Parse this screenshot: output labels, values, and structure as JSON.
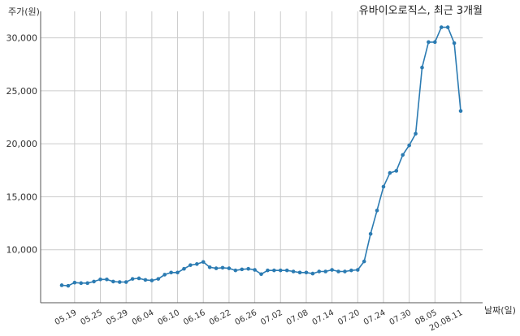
{
  "chart_data": {
    "type": "line",
    "title": "유바이오로직스, 최근 3개월",
    "ylabel": "주가(원)",
    "xlabel": "날짜(일)",
    "ylim": [
      5000,
      32500
    ],
    "yticks": [
      10000,
      15000,
      20000,
      25000,
      30000
    ],
    "ytick_labels": [
      "10,000",
      "15,000",
      "20,000",
      "25,000",
      "30,000"
    ],
    "grid": true,
    "x_tick_labels": [
      "05.19",
      "05.25",
      "05.29",
      "06.04",
      "06.10",
      "06.16",
      "06.22",
      "06.26",
      "07.02",
      "07.08",
      "07.14",
      "07.20",
      "07.24",
      "07.30",
      "08.05",
      "20.08.11"
    ],
    "x_tick_indices": [
      2,
      6,
      10,
      14,
      18,
      22,
      26,
      30,
      34,
      38,
      42,
      46,
      50,
      54,
      58,
      62
    ],
    "series": [
      {
        "values": [
          6650,
          6600,
          6900,
          6850,
          6850,
          7000,
          7200,
          7200,
          7000,
          6950,
          6950,
          7250,
          7300,
          7150,
          7100,
          7250,
          7650,
          7850,
          7850,
          8200,
          8550,
          8650,
          8850,
          8350,
          8250,
          8300,
          8250,
          8050,
          8150,
          8200,
          8100,
          7700,
          8050,
          8050,
          8050,
          8050,
          7950,
          7850,
          7850,
          7750,
          7950,
          7950,
          8100,
          7950,
          7950,
          8050,
          8100,
          8900,
          11500,
          13700,
          15950,
          17250,
          17450,
          18950,
          19850,
          20950,
          27200,
          29600,
          29600,
          31000,
          31000,
          29500,
          23100
        ]
      }
    ],
    "colors": {
      "line": "#2b7bb2",
      "marker": "#2b7bb2",
      "grid": "#cccccc",
      "axis": "#555555"
    }
  }
}
